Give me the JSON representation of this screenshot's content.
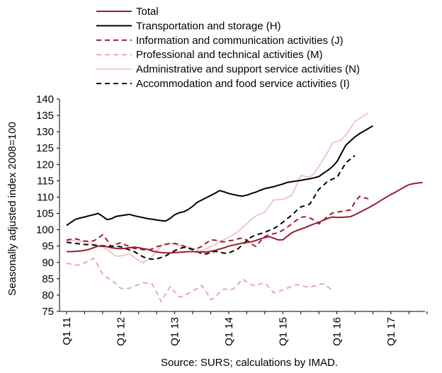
{
  "chart_data": {
    "type": "line",
    "title": "",
    "ylabel": "Seasonally adjusted index 2008=100",
    "xlabel": "",
    "ylim": [
      75,
      140
    ],
    "yticks": [
      75,
      80,
      85,
      90,
      95,
      100,
      105,
      110,
      115,
      120,
      125,
      130,
      135,
      140
    ],
    "xtick_labels": [
      "Q1 11",
      "Q1 12",
      "Q1 13",
      "Q1 14",
      "Q1 15",
      "Q1 16",
      "Q1 17"
    ],
    "xtick_month_index": [
      0,
      12,
      24,
      36,
      48,
      60,
      72
    ],
    "x_months": 80,
    "grid": false,
    "legend_placement": "top",
    "source": "Source: SURS; calculations by IMAD.",
    "series": [
      {
        "name": "Total",
        "color": "#9e1b32",
        "dash": "solid",
        "values": [
          93.3,
          93.3,
          93.4,
          93.5,
          93.7,
          94.0,
          94.5,
          95.0,
          95.0,
          94.8,
          94.5,
          94.3,
          94.2,
          94.3,
          94.5,
          94.7,
          94.5,
          94.2,
          94.0,
          93.5,
          93.2,
          93.0,
          92.9,
          92.9,
          93.0,
          93.1,
          93.2,
          93.3,
          93.3,
          93.2,
          93.2,
          93.2,
          93.4,
          93.7,
          94.1,
          94.5,
          95.0,
          95.3,
          95.6,
          95.9,
          96.1,
          96.3,
          96.7,
          97.2,
          97.6,
          97.9,
          97.4,
          96.9,
          96.9,
          98.0,
          99.1,
          99.7,
          100.2,
          100.7,
          101.3,
          101.8,
          102.3,
          102.9,
          103.5,
          103.9,
          103.8,
          103.8,
          103.9,
          104.0,
          104.6,
          105.3,
          106.0,
          106.7,
          107.5,
          108.3,
          109.2,
          110.0,
          110.8,
          111.5,
          112.3,
          113.1,
          113.8,
          114.1,
          114.3,
          114.5
        ]
      },
      {
        "name": "Transportation and storage (H)",
        "color": "#000000",
        "dash": "solid",
        "values": [
          101.3,
          102.3,
          103.2,
          103.6,
          103.9,
          104.3,
          104.6,
          105.0,
          104.1,
          103.1,
          103.4,
          104.1,
          104.3,
          104.5,
          104.7,
          104.3,
          104.0,
          103.7,
          103.4,
          103.2,
          103.0,
          102.8,
          102.7,
          103.5,
          104.6,
          105.2,
          105.5,
          106.2,
          107.2,
          108.4,
          109.1,
          109.8,
          110.5,
          111.2,
          112.0,
          111.6,
          111.1,
          110.8,
          110.5,
          110.3,
          110.6,
          111.1,
          111.5,
          112.1,
          112.6,
          112.9,
          113.2,
          113.6,
          114.0,
          114.5,
          114.7,
          114.9,
          115.1,
          115.4,
          115.6,
          115.9,
          116.3,
          117.3,
          118.2,
          119.3,
          120.8,
          123.4,
          125.9,
          127.2,
          128.4,
          129.4,
          130.2,
          131.0,
          131.8
        ]
      },
      {
        "name": "Information and communication activities (J)",
        "color": "#9e1b32",
        "dash": "dashed",
        "values": [
          96.8,
          97.1,
          97.2,
          96.9,
          96.5,
          96.5,
          96.6,
          97.4,
          98.5,
          96.8,
          94.6,
          95.6,
          96.0,
          95.4,
          94.8,
          94.3,
          94.1,
          93.9,
          93.8,
          94.1,
          94.8,
          95.2,
          95.5,
          95.8,
          95.8,
          95.5,
          95.0,
          94.5,
          94.0,
          94.3,
          94.9,
          95.9,
          96.9,
          96.8,
          96.4,
          96.3,
          96.6,
          96.8,
          97.2,
          97.5,
          96.9,
          95.7,
          94.9,
          96.5,
          97.9,
          98.5,
          98.8,
          99.1,
          99.9,
          100.8,
          101.8,
          102.9,
          103.8,
          104.0,
          103.6,
          102.9,
          101.8,
          102.9,
          104.2,
          105.1,
          105.4,
          105.6,
          105.8,
          106.1,
          108.4,
          110.2,
          109.8,
          109.5
        ]
      },
      {
        "name": "Professional and technical activities (M)",
        "color": "#e8a9ad",
        "dash": "dashed",
        "values": [
          89.8,
          89.4,
          89.1,
          89.3,
          89.9,
          90.5,
          91.3,
          89.0,
          86.5,
          85.3,
          84.6,
          83.4,
          82.1,
          81.9,
          82.1,
          82.6,
          83.3,
          83.8,
          83.6,
          83.4,
          80.8,
          78.0,
          80.3,
          82.6,
          81.0,
          79.4,
          79.7,
          80.5,
          81.3,
          82.0,
          83.0,
          81.0,
          78.6,
          79.3,
          80.9,
          81.9,
          81.6,
          81.8,
          83.3,
          84.9,
          84.0,
          83.2,
          82.8,
          83.4,
          83.7,
          82.3,
          80.7,
          81.0,
          81.6,
          82.1,
          82.7,
          83.2,
          83.0,
          82.6,
          82.4,
          82.8,
          83.2,
          83.5,
          82.5,
          81.5
        ]
      },
      {
        "name": "Administrative and support service activities (N)",
        "color": "#f0c7c9",
        "dash": "solid",
        "values": [
          97.0,
          96.8,
          96.5,
          96.4,
          96.4,
          96.2,
          95.6,
          95.0,
          94.6,
          94.0,
          92.9,
          91.9,
          92.0,
          92.3,
          92.6,
          91.6,
          90.6,
          89.9,
          90.7,
          91.8,
          93.5,
          95.0,
          95.8,
          95.9,
          95.6,
          95.3,
          95.0,
          94.7,
          94.3,
          93.9,
          93.6,
          94.1,
          94.8,
          95.5,
          96.3,
          97.0,
          97.7,
          98.5,
          99.4,
          100.6,
          101.8,
          103.2,
          104.2,
          104.8,
          105.4,
          107.3,
          109.2,
          109.2,
          109.3,
          109.8,
          110.6,
          113.5,
          116.7,
          116.3,
          116.1,
          117.4,
          119.4,
          121.6,
          123.9,
          126.5,
          127.0,
          127.5,
          129.1,
          131.0,
          133.1,
          134.0,
          135.0,
          135.7
        ]
      },
      {
        "name": "Accommodation and food service activities (I)",
        "color": "#000000",
        "dash": "dashed",
        "values": [
          96.2,
          96.0,
          95.8,
          95.7,
          95.5,
          95.4,
          95.3,
          95.2,
          95.1,
          95.0,
          95.0,
          95.0,
          94.8,
          94.3,
          93.8,
          93.3,
          92.5,
          91.7,
          91.2,
          91.0,
          91.1,
          91.5,
          92.0,
          92.8,
          93.6,
          94.2,
          94.6,
          94.4,
          93.9,
          93.3,
          92.7,
          92.6,
          93.0,
          93.4,
          93.2,
          92.8,
          92.9,
          93.5,
          94.1,
          95.3,
          96.7,
          97.8,
          98.4,
          98.8,
          99.2,
          99.8,
          100.4,
          101.2,
          102.3,
          103.4,
          104.5,
          105.8,
          107.0,
          107.4,
          107.9,
          110.1,
          112.4,
          113.6,
          114.9,
          115.5,
          116.0,
          118.2,
          120.5,
          121.6,
          122.7
        ]
      }
    ]
  }
}
